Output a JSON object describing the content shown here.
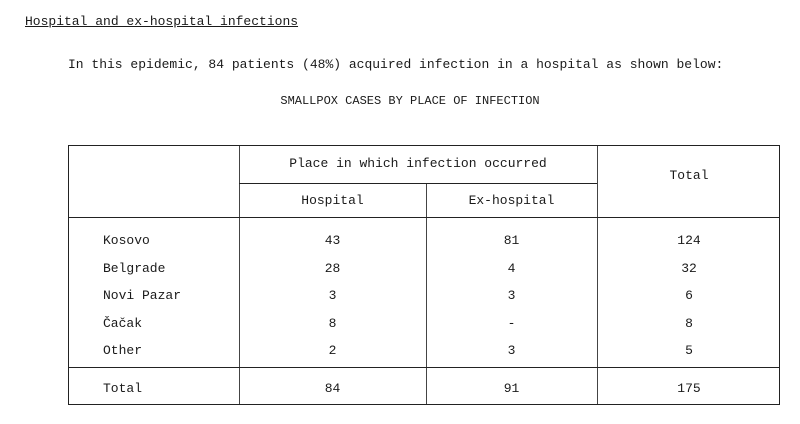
{
  "heading": "Hospital and ex-hospital infections",
  "paragraph": "In this epidemic, 84 patients (48%) acquired infection in a hospital as shown below:",
  "table_title": "SMALLPOX CASES BY PLACE OF INFECTION",
  "table": {
    "group_header": "Place in which infection occurred",
    "columns": [
      "Hospital",
      "Ex-hospital"
    ],
    "total_header": "Total",
    "rows": [
      {
        "place": "Kosovo",
        "hospital": "43",
        "ex_hospital": "81",
        "total": "124"
      },
      {
        "place": "Belgrade",
        "hospital": "28",
        "ex_hospital": "4",
        "total": "32"
      },
      {
        "place": "Novi Pazar",
        "hospital": "3",
        "ex_hospital": "3",
        "total": "6"
      },
      {
        "place": "Čačak",
        "hospital": "8",
        "ex_hospital": "-",
        "total": "8"
      },
      {
        "place": "Other",
        "hospital": "2",
        "ex_hospital": "3",
        "total": "5"
      }
    ],
    "total_row": {
      "place": "Total",
      "hospital": "84",
      "ex_hospital": "91",
      "total": "175"
    }
  }
}
